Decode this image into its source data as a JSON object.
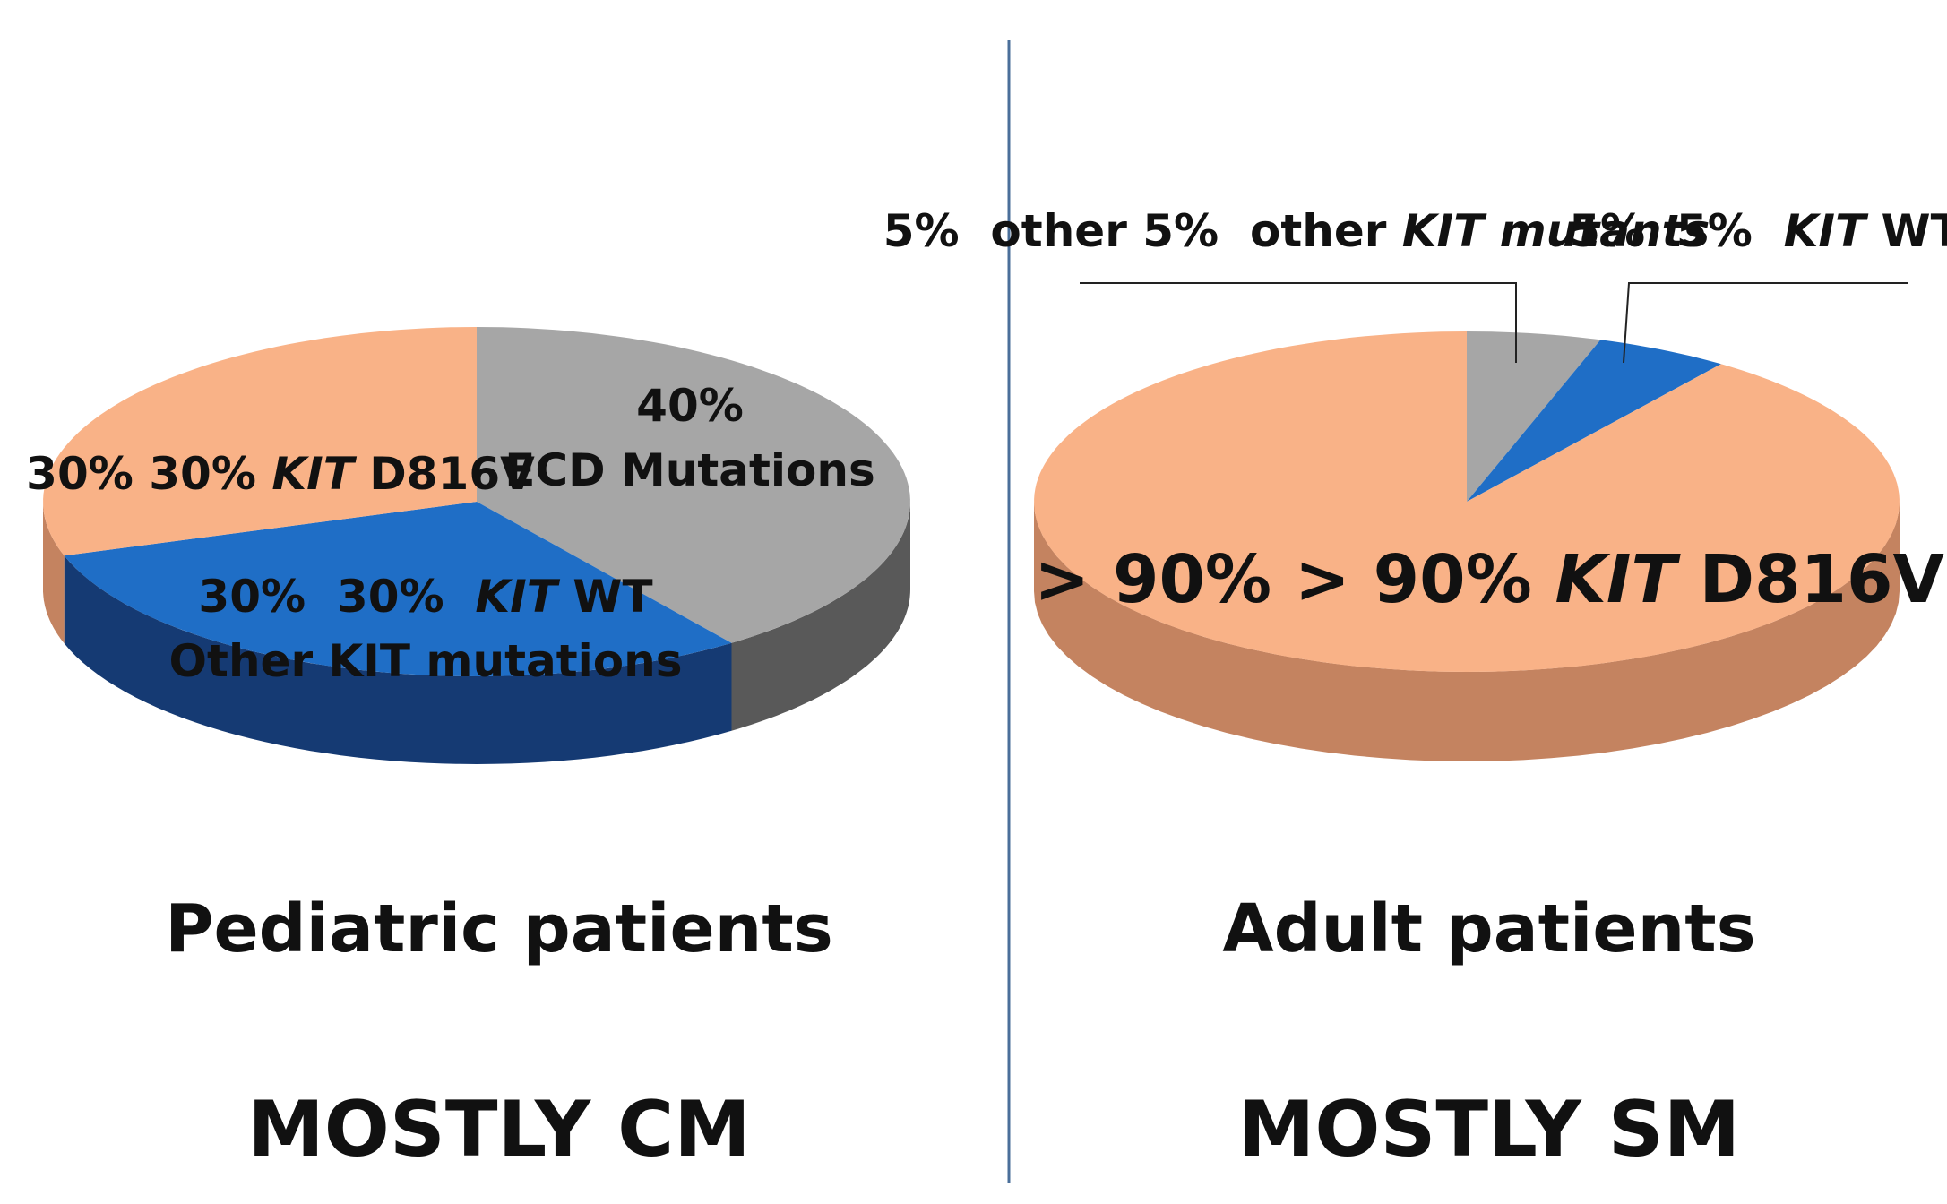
{
  "divider_color": "#4a6f9a",
  "chart_data": [
    {
      "type": "pie",
      "style": "3d",
      "caption": "Pediatric patients",
      "subcaption": "MOSTLY CM",
      "slices": [
        {
          "value": 40,
          "label_lines": [
            [
              {
                "t": "40%",
                "italic": false
              }
            ],
            [
              {
                "t": "ECD Mutations",
                "italic": false
              }
            ]
          ],
          "color": "#a6a6a6",
          "side_color": "#595959"
        },
        {
          "value": 30,
          "label_lines": [
            [
              {
                "t": "30%  ",
                "italic": false
              },
              {
                "t": "KIT",
                "italic": true
              },
              {
                "t": " WT",
                "italic": false
              }
            ],
            [
              {
                "t": "Other KIT mutations",
                "italic": false
              }
            ]
          ],
          "color": "#1f6ec6",
          "side_color": "#153a73"
        },
        {
          "value": 30,
          "label_lines": [
            [
              {
                "t": "30% ",
                "italic": false
              },
              {
                "t": "KIT",
                "italic": true
              },
              {
                "t": " D816V",
                "italic": false
              }
            ]
          ],
          "color": "#f9b287",
          "side_color": "#c48360"
        }
      ]
    },
    {
      "type": "pie",
      "style": "3d",
      "caption": "Adult patients",
      "subcaption": "MOSTLY SM",
      "slices": [
        {
          "value": 5,
          "label_lines": [
            [
              {
                "t": "5%  other ",
                "italic": false
              },
              {
                "t": "KIT mutants",
                "italic": true
              }
            ]
          ],
          "color": "#a6a6a6",
          "side_color": "#595959"
        },
        {
          "value": 5,
          "label_lines": [
            [
              {
                "t": "5%  ",
                "italic": false
              },
              {
                "t": "KIT",
                "italic": true
              },
              {
                "t": " WT",
                "italic": false
              }
            ]
          ],
          "color": "#1f6ec6",
          "side_color": "#153a73"
        },
        {
          "value": 90,
          "label_lines": [
            [
              {
                "t": "> 90% ",
                "italic": false
              },
              {
                "t": "KIT",
                "italic": true
              },
              {
                "t": " D816V",
                "italic": false
              }
            ]
          ],
          "color": "#f9b287",
          "side_color": "#c48360"
        }
      ]
    }
  ]
}
